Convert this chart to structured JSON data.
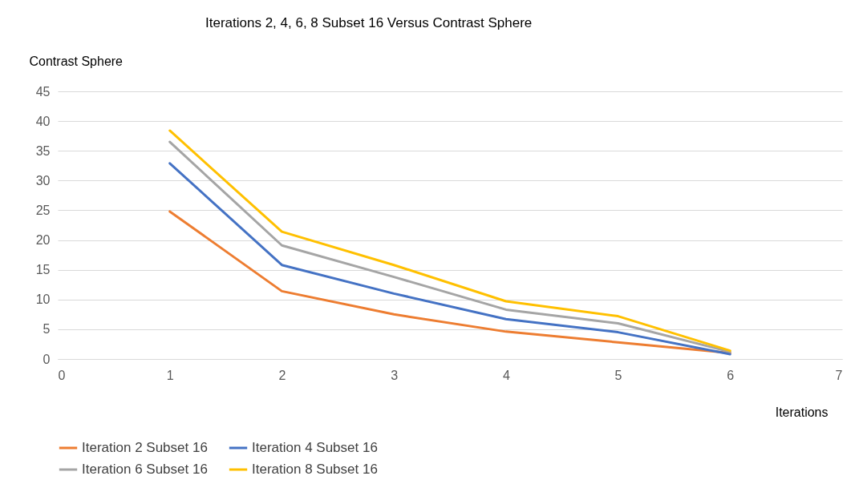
{
  "chart_data": {
    "type": "line",
    "title": "Iterations 2, 4, 6, 8 Subset 16 Versus Contrast Sphere",
    "xlabel": "Iterations",
    "ylabel": "Contrast Sphere",
    "x": [
      1,
      2,
      3,
      4,
      5,
      6
    ],
    "series": [
      {
        "name": "Iteration 2 Subset 16",
        "color": "#ed7d31",
        "values": [
          24.8,
          11.4,
          7.5,
          4.6,
          2.8,
          1.0
        ]
      },
      {
        "name": "Iteration 4 Subset 16",
        "color": "#4472c4",
        "values": [
          32.9,
          15.8,
          11.0,
          6.7,
          4.5,
          0.8
        ]
      },
      {
        "name": "Iteration 6 Subset 16",
        "color": "#a5a5a5",
        "values": [
          36.5,
          19.1,
          13.8,
          8.3,
          6.0,
          1.2
        ]
      },
      {
        "name": "Iteration 8 Subset 16",
        "color": "#ffc000",
        "values": [
          38.4,
          21.4,
          15.8,
          9.7,
          7.2,
          1.4
        ]
      }
    ],
    "xlim": [
      0,
      7
    ],
    "xticks": [
      0,
      1,
      2,
      3,
      4,
      5,
      6,
      7
    ],
    "ylim": [
      0,
      45
    ],
    "yticks": [
      0,
      5,
      10,
      15,
      20,
      25,
      30,
      35,
      40,
      45
    ],
    "grid": "y",
    "legend": "bottom",
    "line_style": "solid"
  }
}
